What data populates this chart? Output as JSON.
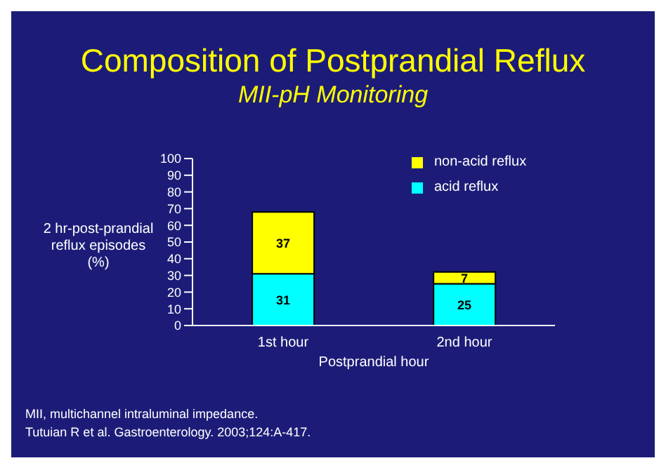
{
  "chart_data": {
    "type": "bar",
    "title": "Composition of Postprandial Reflux",
    "subtitle": "MII-pH Monitoring",
    "ylabel": "2 hr-post-prandial reflux episodes (%)",
    "xlabel": "Postprandial hour",
    "categories": [
      "1st hour",
      "2nd hour"
    ],
    "series": [
      {
        "name": "acid reflux",
        "color": "#00ffff",
        "values": [
          31,
          25
        ]
      },
      {
        "name": "non-acid reflux",
        "color": "#ffff00",
        "values": [
          37,
          7
        ]
      }
    ],
    "stacked": true,
    "ylim": [
      0,
      100
    ],
    "yticks": [
      0,
      10,
      20,
      30,
      40,
      50,
      60,
      70,
      80,
      90,
      100
    ],
    "data_labels": true,
    "legend": "top right",
    "grid": false,
    "annotations": [
      "MII, multichannel intraluminal impedance.",
      "Tutuian R et al. Gastroenterology. 2003;124:A-417."
    ]
  }
}
